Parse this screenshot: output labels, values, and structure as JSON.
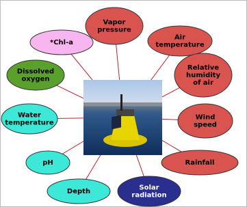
{
  "nodes": [
    {
      "lines": [
        "Vapor",
        "pressure"
      ],
      "color": "#d9534f",
      "text_color": "#000000"
    },
    {
      "lines": [
        "Air",
        "temperature"
      ],
      "color": "#d9534f",
      "text_color": "#000000"
    },
    {
      "lines": [
        "Relative",
        "humidity",
        "of air"
      ],
      "color": "#d9534f",
      "text_color": "#000000"
    },
    {
      "lines": [
        "Wind",
        "speed"
      ],
      "color": "#d9534f",
      "text_color": "#000000"
    },
    {
      "lines": [
        "Rainfall"
      ],
      "color": "#d9534f",
      "text_color": "#000000"
    },
    {
      "lines": [
        "Solar",
        "radiation"
      ],
      "color": "#2a2f8f",
      "text_color": "#ffffff"
    },
    {
      "lines": [
        "Depth"
      ],
      "color": "#3ee8d8",
      "text_color": "#000000"
    },
    {
      "lines": [
        "pH"
      ],
      "color": "#3ee8d8",
      "text_color": "#000000"
    },
    {
      "lines": [
        "Water",
        "temperature"
      ],
      "color": "#3ee8d8",
      "text_color": "#000000"
    },
    {
      "lines": [
        "Dissolved",
        "oxygen"
      ],
      "color": "#5aa02c",
      "text_color": "#000000"
    },
    {
      "lines": [
        "*Chl-a"
      ],
      "color": "#f7b6ef",
      "text_color": "#000000"
    }
  ]
}
